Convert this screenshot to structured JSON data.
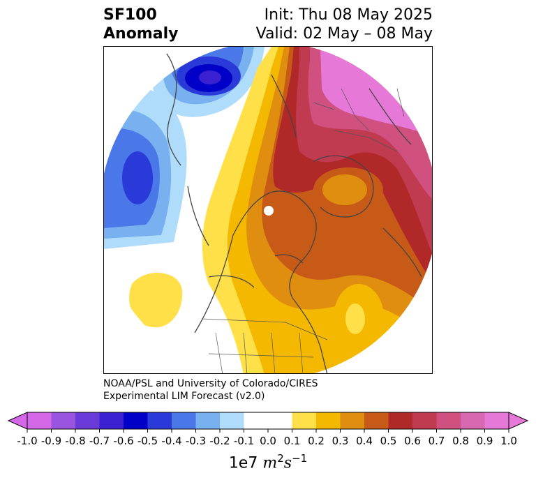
{
  "title": {
    "line1": "SF100",
    "line2": "Anomaly",
    "init": "Init: Thu 08 May 2025",
    "valid": "Valid: 02 May – 08 May"
  },
  "credit": {
    "line1": "NOAA/PSL and University of Colorado/CIRES",
    "line2": "Experimental LIM Forecast (v2.0)"
  },
  "colorbar": {
    "ticks": [
      "-1.0",
      "-0.9",
      "-0.8",
      "-0.7",
      "-0.6",
      "-0.5",
      "-0.4",
      "-0.3",
      "-0.2",
      "-0.1",
      "0.0",
      "0.1",
      "0.2",
      "0.3",
      "0.4",
      "0.5",
      "0.6",
      "0.7",
      "0.8",
      "0.9",
      "1.0"
    ],
    "colors": [
      "#d468e8",
      "#9a55e0",
      "#6a3ad8",
      "#3a20d0",
      "#0000c8",
      "#2a3ad8",
      "#4a78e8",
      "#78b0f0",
      "#b0dcfc",
      "#ffffff",
      "#ffffff",
      "#ffe048",
      "#f5b800",
      "#e08e10",
      "#c85a18",
      "#b02828",
      "#c03a50",
      "#d05080",
      "#d868b0",
      "#e678d8"
    ],
    "extend_low_color": "#d468e8",
    "extend_high_color": "#e678d8",
    "unit_prefix": "1e7",
    "unit_m": "m",
    "unit_m_exp": "2",
    "unit_s": "s",
    "unit_s_exp": "−1"
  }
}
